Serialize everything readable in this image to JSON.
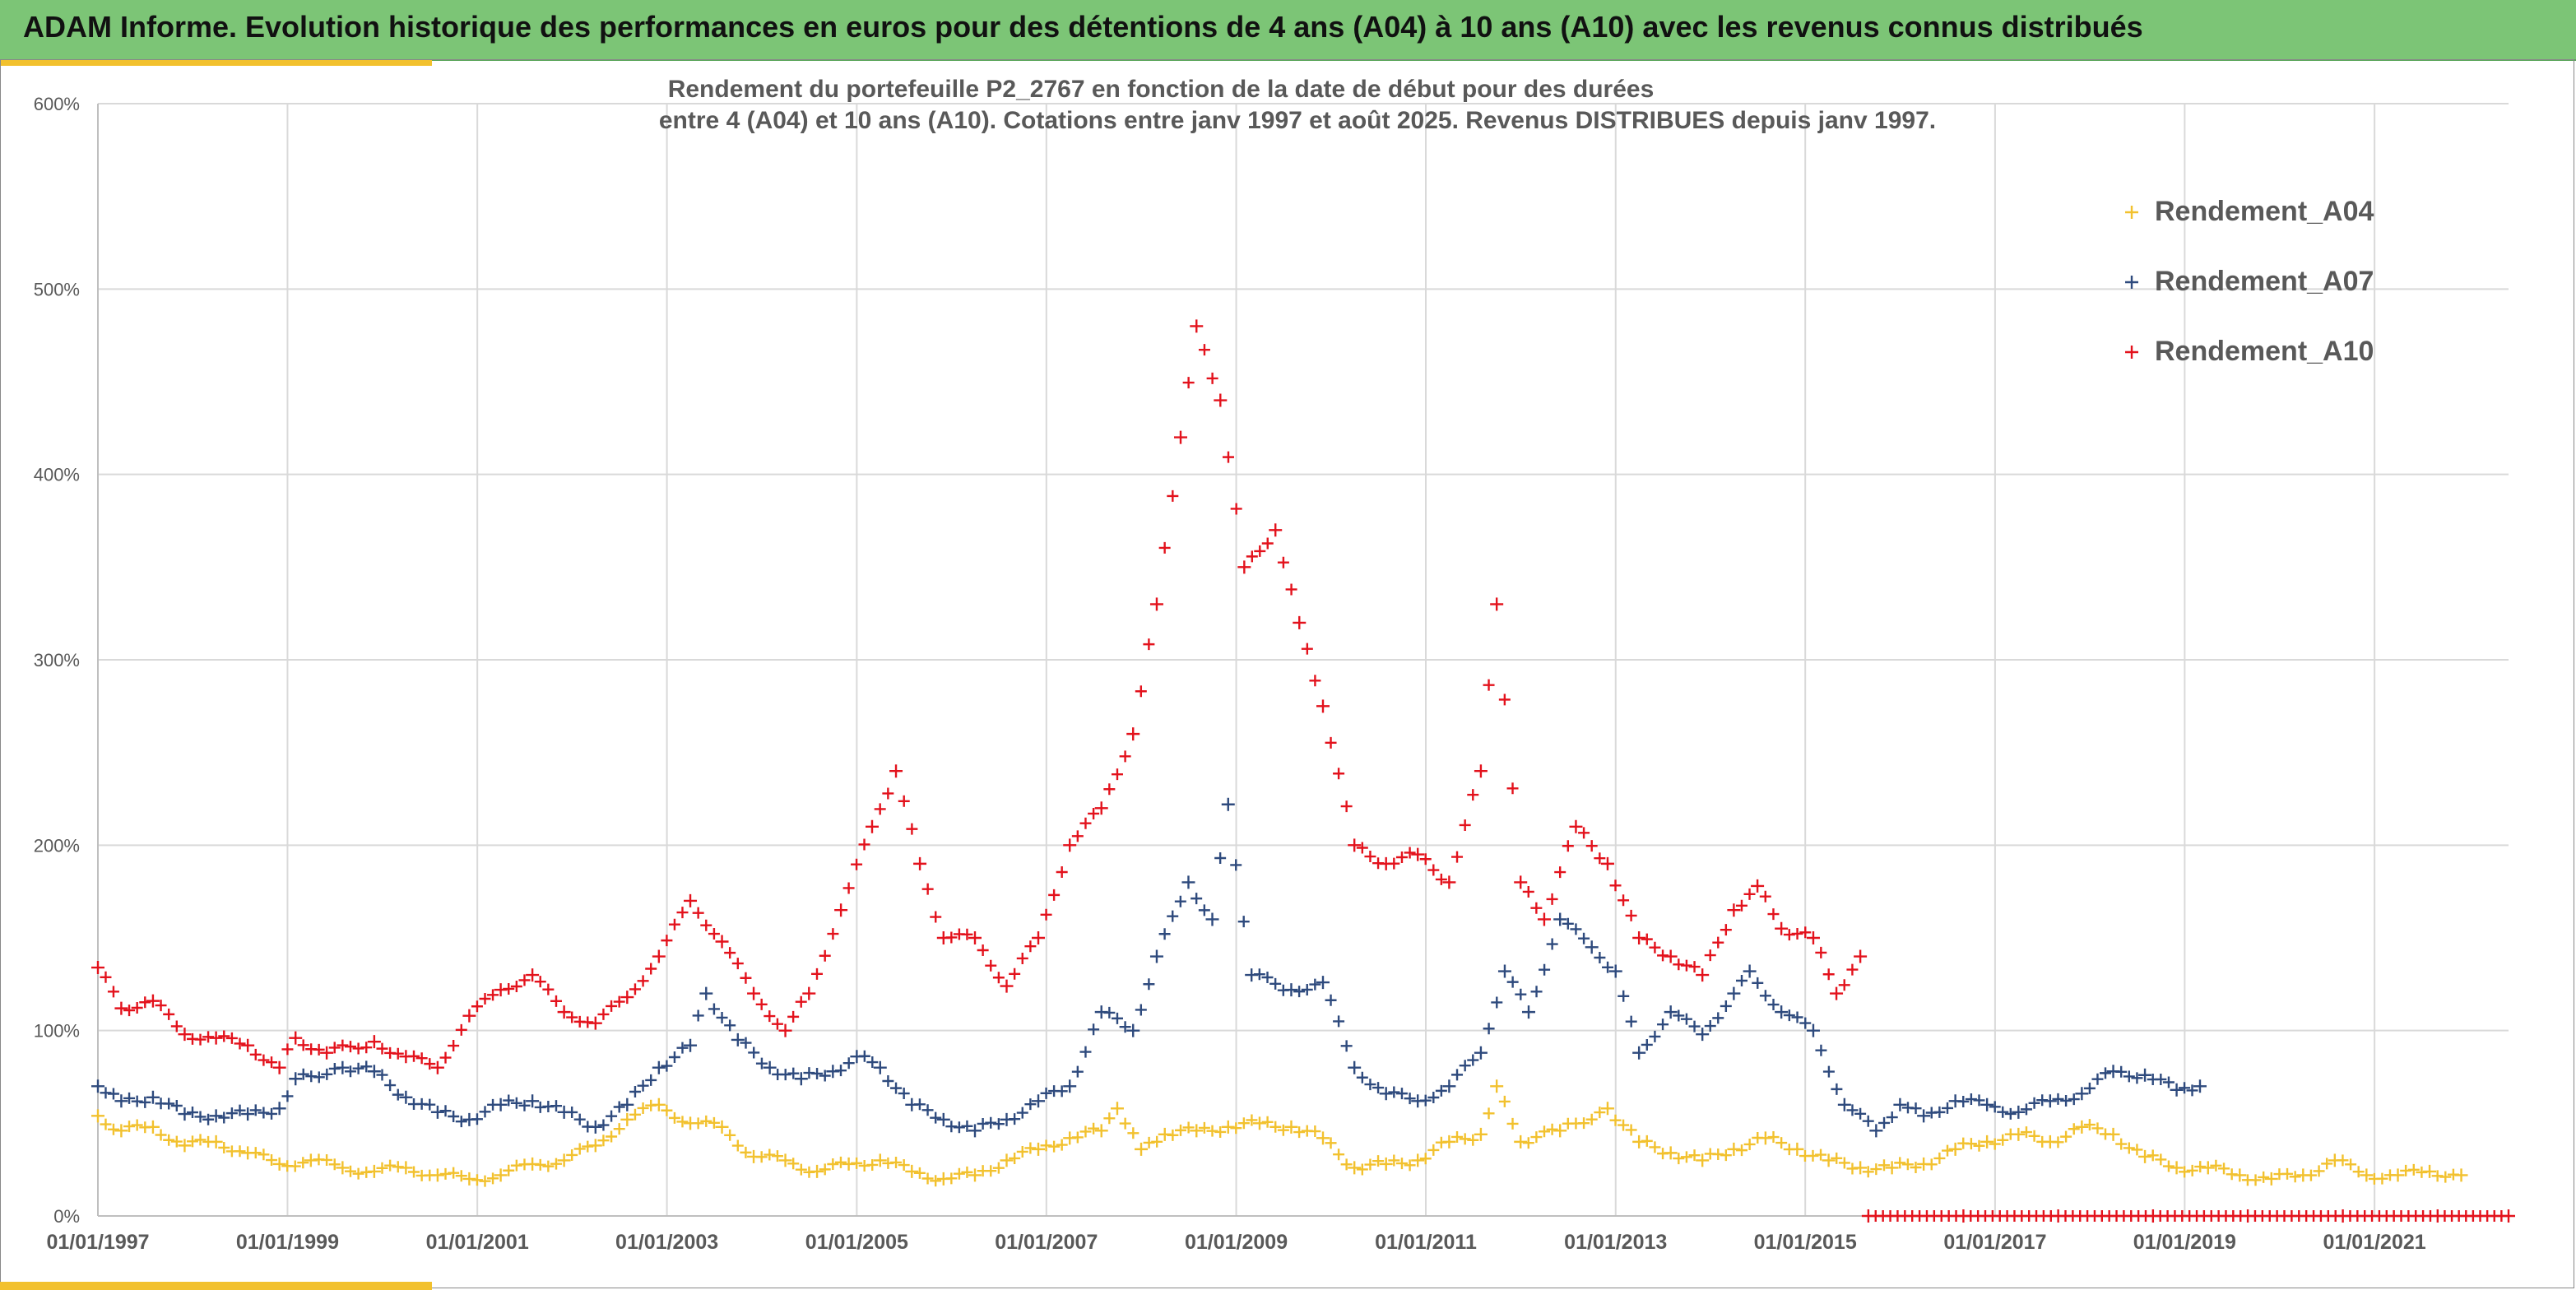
{
  "banner": {
    "text": "ADAM Informe. Evolution historique des performances en euros pour des détentions de 4 ans (A04) à 10 ans (A10) avec les revenus connus distribués"
  },
  "colors": {
    "banner_bg": "#7cc576",
    "accent": "#f2c12e",
    "series_a04": "#f2c12e",
    "series_a07": "#2e4a7d",
    "series_a10": "#e3121c"
  },
  "chart_data": {
    "type": "scatter",
    "title": "Rendement du portefeuille P2_2767 en fonction de la date de début pour des durées",
    "subtitle": "entre 4 (A04) et 10 ans (A10). Cotations entre janv 1997 et août 2025. Revenus DISTRIBUES depuis janv 1997.",
    "xlabel": "",
    "ylabel": "",
    "x_tick_labels": [
      "01/01/1997",
      "01/01/1999",
      "01/01/2001",
      "01/01/2003",
      "01/01/2005",
      "01/01/2007",
      "01/01/2009",
      "01/01/2011",
      "01/01/2013",
      "01/01/2015",
      "01/01/2017",
      "01/01/2019",
      "01/01/2021"
    ],
    "y_tick_labels": [
      "0%",
      "100%",
      "200%",
      "300%",
      "400%",
      "500%",
      "600%"
    ],
    "xlim": [
      "1997-01-01",
      "2022-06-01"
    ],
    "ylim": [
      0,
      600
    ],
    "grid": true,
    "legend_position": "top-right",
    "marker": "+",
    "series": [
      {
        "name": "Rendement_A04",
        "color": "#f2c12e",
        "points": [
          [
            "1997-01-01",
            54
          ],
          [
            "1997-04-01",
            46
          ],
          [
            "1997-08-01",
            48
          ],
          [
            "1997-12-01",
            38
          ],
          [
            "1998-04-01",
            40
          ],
          [
            "1998-08-01",
            34
          ],
          [
            "1998-12-01",
            28
          ],
          [
            "1999-04-01",
            30
          ],
          [
            "1999-08-01",
            26
          ],
          [
            "1999-12-01",
            24
          ],
          [
            "2000-04-01",
            26
          ],
          [
            "2000-08-01",
            22
          ],
          [
            "2000-12-01",
            20
          ],
          [
            "2001-04-01",
            22
          ],
          [
            "2001-08-01",
            28
          ],
          [
            "2001-12-01",
            30
          ],
          [
            "2002-04-01",
            38
          ],
          [
            "2002-08-01",
            52
          ],
          [
            "2002-12-01",
            60
          ],
          [
            "2003-04-01",
            50
          ],
          [
            "2003-08-01",
            48
          ],
          [
            "2003-12-01",
            32
          ],
          [
            "2004-04-01",
            30
          ],
          [
            "2004-08-01",
            24
          ],
          [
            "2004-12-01",
            28
          ],
          [
            "2005-04-01",
            30
          ],
          [
            "2005-08-01",
            24
          ],
          [
            "2005-12-01",
            20
          ],
          [
            "2006-04-01",
            22
          ],
          [
            "2006-08-01",
            30
          ],
          [
            "2006-12-01",
            36
          ],
          [
            "2007-04-01",
            42
          ],
          [
            "2007-08-01",
            46
          ],
          [
            "2007-10-01",
            58
          ],
          [
            "2008-01-01",
            36
          ],
          [
            "2008-04-01",
            44
          ],
          [
            "2008-08-01",
            46
          ],
          [
            "2008-12-01",
            48
          ],
          [
            "2009-04-01",
            50
          ],
          [
            "2009-08-01",
            48
          ],
          [
            "2009-12-01",
            42
          ],
          [
            "2010-04-01",
            26
          ],
          [
            "2010-08-01",
            28
          ],
          [
            "2010-12-01",
            30
          ],
          [
            "2011-04-01",
            40
          ],
          [
            "2011-08-01",
            44
          ],
          [
            "2011-10-01",
            70
          ],
          [
            "2012-01-01",
            40
          ],
          [
            "2012-06-01",
            46
          ],
          [
            "2012-12-01",
            58
          ],
          [
            "2013-04-01",
            40
          ],
          [
            "2013-08-01",
            34
          ],
          [
            "2013-12-01",
            30
          ],
          [
            "2014-04-01",
            36
          ],
          [
            "2014-08-01",
            42
          ],
          [
            "2014-12-01",
            36
          ],
          [
            "2015-04-01",
            30
          ],
          [
            "2015-08-01",
            26
          ],
          [
            "2015-12-01",
            26
          ],
          [
            "2016-04-01",
            28
          ],
          [
            "2016-08-01",
            36
          ],
          [
            "2016-12-01",
            40
          ],
          [
            "2017-04-01",
            44
          ],
          [
            "2017-08-01",
            40
          ],
          [
            "2017-12-01",
            48
          ],
          [
            "2018-04-01",
            44
          ],
          [
            "2018-08-01",
            32
          ],
          [
            "2018-12-01",
            26
          ],
          [
            "2019-04-01",
            26
          ],
          [
            "2019-08-01",
            22
          ],
          [
            "2019-12-01",
            20
          ],
          [
            "2020-04-01",
            22
          ],
          [
            "2020-08-01",
            30
          ],
          [
            "2020-12-01",
            22
          ],
          [
            "2021-04-01",
            22
          ],
          [
            "2021-08-01",
            24
          ],
          [
            "2021-12-01",
            22
          ]
        ]
      },
      {
        "name": "Rendement_A07",
        "color": "#2e4a7d",
        "points": [
          [
            "1997-01-01",
            70
          ],
          [
            "1997-04-01",
            62
          ],
          [
            "1997-08-01",
            64
          ],
          [
            "1997-12-01",
            55
          ],
          [
            "1998-04-01",
            54
          ],
          [
            "1998-08-01",
            55
          ],
          [
            "1998-12-01",
            58
          ],
          [
            "1999-02-01",
            74
          ],
          [
            "1999-08-01",
            80
          ],
          [
            "1999-12-01",
            78
          ],
          [
            "2000-04-01",
            64
          ],
          [
            "2000-08-01",
            56
          ],
          [
            "2000-12-01",
            52
          ],
          [
            "2001-04-01",
            60
          ],
          [
            "2001-08-01",
            62
          ],
          [
            "2001-12-01",
            56
          ],
          [
            "2002-04-01",
            48
          ],
          [
            "2002-08-01",
            60
          ],
          [
            "2002-12-01",
            80
          ],
          [
            "2003-04-01",
            92
          ],
          [
            "2003-06-01",
            120
          ],
          [
            "2003-10-01",
            95
          ],
          [
            "2004-02-01",
            80
          ],
          [
            "2004-06-01",
            74
          ],
          [
            "2004-10-01",
            78
          ],
          [
            "2005-01-01",
            86
          ],
          [
            "2005-04-01",
            80
          ],
          [
            "2005-08-01",
            60
          ],
          [
            "2005-12-01",
            52
          ],
          [
            "2006-04-01",
            46
          ],
          [
            "2006-08-01",
            52
          ],
          [
            "2006-12-01",
            62
          ],
          [
            "2007-04-01",
            70
          ],
          [
            "2007-08-01",
            110
          ],
          [
            "2007-12-01",
            100
          ],
          [
            "2008-03-01",
            140
          ],
          [
            "2008-07-01",
            180
          ],
          [
            "2008-10-01",
            160
          ],
          [
            "2008-12-01",
            222
          ],
          [
            "2009-03-01",
            130
          ],
          [
            "2009-08-01",
            122
          ],
          [
            "2009-12-01",
            126
          ],
          [
            "2010-04-01",
            80
          ],
          [
            "2010-08-01",
            66
          ],
          [
            "2010-12-01",
            62
          ],
          [
            "2011-04-01",
            70
          ],
          [
            "2011-08-01",
            88
          ],
          [
            "2011-11-01",
            132
          ],
          [
            "2012-02-01",
            110
          ],
          [
            "2012-06-01",
            160
          ],
          [
            "2012-10-01",
            145
          ],
          [
            "2013-01-01",
            132
          ],
          [
            "2013-04-01",
            88
          ],
          [
            "2013-08-01",
            110
          ],
          [
            "2013-12-01",
            98
          ],
          [
            "2014-04-01",
            120
          ],
          [
            "2014-06-01",
            132
          ],
          [
            "2014-10-01",
            110
          ],
          [
            "2015-02-01",
            100
          ],
          [
            "2015-06-01",
            60
          ],
          [
            "2015-10-01",
            46
          ],
          [
            "2016-01-01",
            60
          ],
          [
            "2016-04-01",
            54
          ],
          [
            "2016-08-01",
            62
          ],
          [
            "2016-12-01",
            60
          ],
          [
            "2017-04-01",
            56
          ],
          [
            "2017-08-01",
            62
          ],
          [
            "2017-12-01",
            66
          ],
          [
            "2018-04-01",
            78
          ],
          [
            "2018-08-01",
            76
          ],
          [
            "2018-12-01",
            68
          ],
          [
            "2019-03-01",
            70
          ]
        ]
      },
      {
        "name": "Rendement_A10",
        "color": "#e3121c",
        "points": [
          [
            "1997-01-01",
            134
          ],
          [
            "1997-04-01",
            112
          ],
          [
            "1997-08-01",
            116
          ],
          [
            "1997-12-01",
            98
          ],
          [
            "1998-04-01",
            96
          ],
          [
            "1998-08-01",
            92
          ],
          [
            "1998-12-01",
            80
          ],
          [
            "1999-02-01",
            96
          ],
          [
            "1999-06-01",
            88
          ],
          [
            "1999-12-01",
            94
          ],
          [
            "2000-04-01",
            86
          ],
          [
            "2000-08-01",
            80
          ],
          [
            "2000-12-01",
            108
          ],
          [
            "2001-04-01",
            122
          ],
          [
            "2001-08-01",
            130
          ],
          [
            "2001-12-01",
            110
          ],
          [
            "2002-04-01",
            104
          ],
          [
            "2002-08-01",
            118
          ],
          [
            "2002-12-01",
            140
          ],
          [
            "2003-04-01",
            170
          ],
          [
            "2003-08-01",
            148
          ],
          [
            "2003-12-01",
            120
          ],
          [
            "2004-04-01",
            100
          ],
          [
            "2004-07-01",
            120
          ],
          [
            "2004-11-01",
            165
          ],
          [
            "2005-03-01",
            210
          ],
          [
            "2005-06-01",
            240
          ],
          [
            "2005-09-01",
            190
          ],
          [
            "2005-12-01",
            150
          ],
          [
            "2006-04-01",
            150
          ],
          [
            "2006-08-01",
            124
          ],
          [
            "2006-12-01",
            150
          ],
          [
            "2007-04-01",
            200
          ],
          [
            "2007-08-01",
            220
          ],
          [
            "2007-12-01",
            260
          ],
          [
            "2008-03-01",
            330
          ],
          [
            "2008-06-01",
            420
          ],
          [
            "2008-08-01",
            480
          ],
          [
            "2008-11-01",
            440
          ],
          [
            "2009-02-01",
            350
          ],
          [
            "2009-06-01",
            370
          ],
          [
            "2009-09-01",
            320
          ],
          [
            "2009-12-01",
            275
          ],
          [
            "2010-04-01",
            200
          ],
          [
            "2010-08-01",
            190
          ],
          [
            "2010-12-01",
            195
          ],
          [
            "2011-04-01",
            180
          ],
          [
            "2011-08-01",
            240
          ],
          [
            "2011-10-01",
            330
          ],
          [
            "2012-01-01",
            180
          ],
          [
            "2012-04-01",
            160
          ],
          [
            "2012-08-01",
            210
          ],
          [
            "2012-12-01",
            190
          ],
          [
            "2013-04-01",
            150
          ],
          [
            "2013-08-01",
            140
          ],
          [
            "2013-12-01",
            130
          ],
          [
            "2014-04-01",
            165
          ],
          [
            "2014-07-01",
            178
          ],
          [
            "2014-10-01",
            155
          ],
          [
            "2015-02-01",
            150
          ],
          [
            "2015-05-01",
            120
          ],
          [
            "2015-08-01",
            140
          ],
          [
            "2015-09-01",
            0
          ],
          [
            "2016-09-01",
            0
          ],
          [
            "2017-09-01",
            0
          ],
          [
            "2018-09-01",
            0
          ],
          [
            "2019-09-01",
            0
          ],
          [
            "2020-09-01",
            0
          ],
          [
            "2021-09-01",
            0
          ],
          [
            "2022-06-01",
            0
          ]
        ]
      }
    ]
  }
}
